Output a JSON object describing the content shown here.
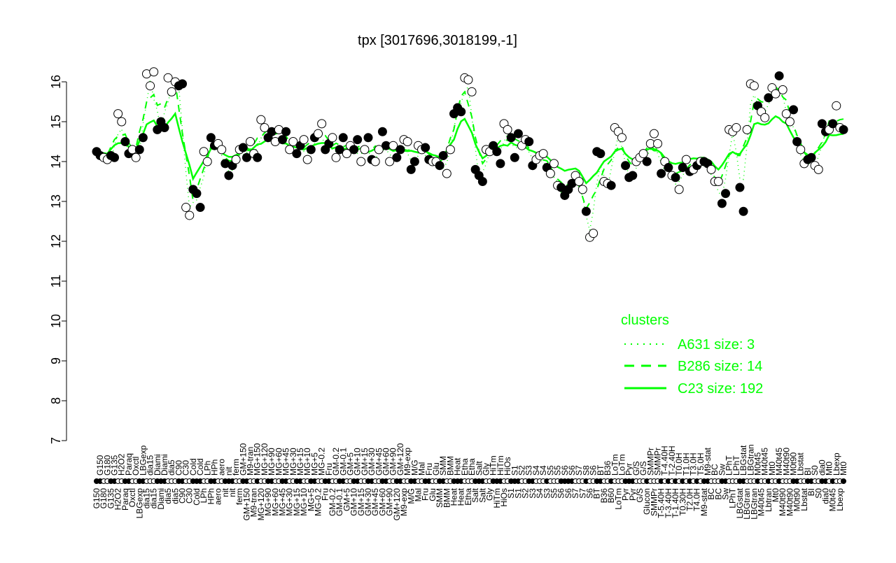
{
  "chart_data": {
    "type": "scatter",
    "title": "tpx [3017696,3018199,-1]",
    "xlabel": "",
    "ylabel": "",
    "ylim": [
      7,
      16
    ],
    "yticks": [
      7,
      8,
      9,
      10,
      11,
      12,
      13,
      14,
      15,
      16
    ],
    "grid": false,
    "colors": {
      "points_fill_a": "#000000",
      "points_fill_b": "#ffffff",
      "cluster_line": "#00ff00"
    },
    "legend": {
      "title": "clusters",
      "placement": "right",
      "entries": [
        {
          "name": "A631 size: 3",
          "style": "dotted"
        },
        {
          "name": "B286 size: 14",
          "style": "dashed"
        },
        {
          "name": "C23 size: 192",
          "style": "solid"
        }
      ]
    },
    "points": [
      [
        "G150",
        14.25
      ],
      [
        "G150",
        14.15
      ],
      [
        "G180",
        14.1
      ],
      [
        "G180",
        14.05
      ],
      [
        "G135",
        14.15
      ],
      [
        "G135",
        14.1
      ],
      [
        "H2O2",
        15.2
      ],
      [
        "H2O2",
        15.0
      ],
      [
        "Paraq",
        14.5
      ],
      [
        "Paraq",
        14.2
      ],
      [
        "Oxctl",
        14.3
      ],
      [
        "Oxctl",
        14.1
      ],
      [
        "LBGexp",
        14.3
      ],
      [
        "LBGexp",
        14.6
      ],
      [
        "dia15",
        16.2
      ],
      [
        "dia15",
        15.9
      ],
      [
        "dia15",
        16.25
      ],
      [
        "Diami",
        14.8
      ],
      [
        "Diami",
        15.0
      ],
      [
        "Diami",
        14.85
      ],
      [
        "dia5",
        16.1
      ],
      [
        "dia5",
        15.75
      ],
      [
        "dia5",
        16.0
      ],
      [
        "C90",
        15.9
      ],
      [
        "C90",
        15.95
      ],
      [
        "C30",
        12.85
      ],
      [
        "C30",
        12.65
      ],
      [
        "Cold",
        13.3
      ],
      [
        "Cold",
        13.2
      ],
      [
        "Cold",
        12.85
      ],
      [
        "LPh",
        14.25
      ],
      [
        "LPh",
        14.0
      ],
      [
        "HPh",
        14.6
      ],
      [
        "HPh",
        14.4
      ],
      [
        "aero",
        14.45
      ],
      [
        "aero",
        14.3
      ],
      [
        "nit",
        13.95
      ],
      [
        "nit",
        13.65
      ],
      [
        "nit",
        13.9
      ],
      [
        "ferm",
        14.05
      ],
      [
        "ferm",
        14.3
      ],
      [
        "GM+150",
        14.35
      ],
      [
        "GM+150",
        14.1
      ],
      [
        "M9-tran",
        14.5
      ],
      [
        "M9-tran",
        14.2
      ],
      [
        "MG+150",
        14.1
      ],
      [
        "MG+120",
        15.05
      ],
      [
        "MG+120",
        14.85
      ],
      [
        "MG+90",
        14.6
      ],
      [
        "MG+90",
        14.75
      ],
      [
        "MG+60",
        14.5
      ],
      [
        "MG+60",
        14.8
      ],
      [
        "MG+45",
        14.55
      ],
      [
        "MG+45",
        14.75
      ],
      [
        "MG+30",
        14.3
      ],
      [
        "MG+30",
        14.5
      ],
      [
        "MG+15",
        14.2
      ],
      [
        "MG+15",
        14.4
      ],
      [
        "MG+10",
        14.55
      ],
      [
        "MG+10",
        14.05
      ],
      [
        "MG+5",
        14.3
      ],
      [
        "MG+5",
        14.6
      ],
      [
        "MG-0.2",
        14.7
      ],
      [
        "MG-0.2",
        14.95
      ],
      [
        "Fru",
        14.3
      ],
      [
        "Fru",
        14.45
      ],
      [
        "GM-0.2",
        14.6
      ],
      [
        "GM-0.2",
        14.1
      ],
      [
        "GM-0.1",
        14.3
      ],
      [
        "GM-0.1",
        14.6
      ],
      [
        "GM+5",
        14.2
      ],
      [
        "GM+5",
        14.4
      ],
      [
        "GM+10",
        14.3
      ],
      [
        "GM+10",
        14.55
      ],
      [
        "GM+15",
        14.0
      ],
      [
        "GM+15",
        14.3
      ],
      [
        "GM+30",
        14.6
      ],
      [
        "GM+30",
        14.05
      ],
      [
        "GM+45",
        14.0
      ],
      [
        "GM+45",
        14.3
      ],
      [
        "GM+60",
        14.75
      ],
      [
        "GM+60",
        14.4
      ],
      [
        "GM+90",
        14.0
      ],
      [
        "GM+90",
        14.4
      ],
      [
        "GM+120",
        14.1
      ],
      [
        "GM+120",
        14.3
      ],
      [
        "M9-exp",
        14.55
      ],
      [
        "M9-exp",
        14.5
      ],
      [
        "M/G",
        13.8
      ],
      [
        "M/G",
        14.0
      ],
      [
        "Mal",
        14.4
      ],
      [
        "Mal",
        14.3
      ],
      [
        "Fru",
        14.35
      ],
      [
        "Fru",
        14.05
      ],
      [
        "Glu",
        14.0
      ],
      [
        "Glu",
        14.0
      ],
      [
        "SMM",
        13.9
      ],
      [
        "SMM",
        14.15
      ],
      [
        "BMM",
        13.7
      ],
      [
        "BMM",
        14.3
      ],
      [
        "Heat",
        15.2
      ],
      [
        "Heat",
        15.35
      ],
      [
        "Heat",
        15.25
      ],
      [
        "Etha",
        16.1
      ],
      [
        "Etha",
        16.05
      ],
      [
        "Etha",
        15.75
      ],
      [
        "Salt",
        13.8
      ],
      [
        "Salt",
        13.65
      ],
      [
        "Salt",
        13.5
      ],
      [
        "Gly",
        14.3
      ],
      [
        "Gly",
        14.25
      ],
      [
        "HiTm",
        14.4
      ],
      [
        "HiTm",
        14.25
      ],
      [
        "HiTm",
        13.95
      ],
      [
        "HiOs",
        14.95
      ],
      [
        "HiOs",
        14.8
      ],
      [
        "S1",
        14.6
      ],
      [
        "S1",
        14.1
      ],
      [
        "S1",
        14.7
      ],
      [
        "S2",
        14.4
      ],
      [
        "S2",
        14.55
      ],
      [
        "S3",
        14.5
      ],
      [
        "S3",
        13.9
      ],
      [
        "S4",
        14.05
      ],
      [
        "S4",
        14.15
      ],
      [
        "S4",
        14.2
      ],
      [
        "S3",
        13.85
      ],
      [
        "S5",
        13.7
      ],
      [
        "S5",
        13.95
      ],
      [
        "S5",
        13.4
      ],
      [
        "S6",
        13.35
      ],
      [
        "S6",
        13.15
      ],
      [
        "S6",
        13.3
      ],
      [
        "S6",
        13.45
      ],
      [
        "S7",
        13.65
      ],
      [
        "S7",
        13.5
      ],
      [
        "S7",
        13.3
      ],
      [
        "S8",
        12.75
      ],
      [
        "S6",
        12.1
      ],
      [
        "S6",
        12.2
      ],
      [
        "BT",
        14.25
      ],
      [
        "BT",
        14.2
      ],
      [
        "B36",
        13.5
      ],
      [
        "B36",
        13.45
      ],
      [
        "B60",
        13.4
      ],
      [
        "LoTm",
        14.85
      ],
      [
        "LoTm",
        14.75
      ],
      [
        "LoTm",
        14.6
      ],
      [
        "Pyr",
        13.9
      ],
      [
        "Pyr",
        13.6
      ],
      [
        "Pyr",
        13.65
      ],
      [
        "G/S",
        14.0
      ],
      [
        "G/S",
        14.1
      ],
      [
        "G/S",
        14.2
      ],
      [
        "Glucon",
        14.0
      ],
      [
        "SMMPr",
        14.45
      ],
      [
        "SMMPr",
        14.7
      ],
      [
        "SMMPr",
        14.45
      ],
      [
        "T-5.40H",
        13.7
      ],
      [
        "T-4.40H",
        14.0
      ],
      [
        "T-3.40H",
        13.85
      ],
      [
        "T-2.40H",
        13.65
      ],
      [
        "T-1.40H",
        13.6
      ],
      [
        "T0.0H",
        13.3
      ],
      [
        "T0.30H",
        13.85
      ],
      [
        "T1.0H",
        14.05
      ],
      [
        "T2.0H",
        13.75
      ],
      [
        "T3.0H",
        13.8
      ],
      [
        "T4.0H",
        13.9
      ],
      [
        "T5.0H",
        14.0
      ],
      [
        "M9-stat",
        14.0
      ],
      [
        "M9-stat",
        13.95
      ],
      [
        "BC",
        13.8
      ],
      [
        "BC",
        13.5
      ],
      [
        "BC",
        13.5
      ],
      [
        "Sw",
        12.95
      ],
      [
        "Sw",
        13.2
      ],
      [
        "LPhT",
        14.8
      ],
      [
        "LPhT",
        14.75
      ],
      [
        "LPhT",
        14.85
      ],
      [
        "LBGstat",
        13.35
      ],
      [
        "LBGstat",
        12.75
      ],
      [
        "LBGtran",
        14.8
      ],
      [
        "LBGtran",
        15.95
      ],
      [
        "LBGtran",
        15.9
      ],
      [
        "M0t45",
        15.4
      ],
      [
        "M40t45",
        15.25
      ],
      [
        "M40t45",
        15.1
      ],
      [
        "Lbtran",
        15.6
      ],
      [
        "Mt0",
        15.85
      ],
      [
        "Mt0",
        15.7
      ],
      [
        "M40t45",
        16.15
      ],
      [
        "M40t90",
        15.8
      ],
      [
        "M40t90",
        15.2
      ],
      [
        "M40t90",
        15.0
      ],
      [
        "M0t90",
        15.3
      ],
      [
        "M0t90",
        14.5
      ],
      [
        "Lbstat",
        14.3
      ],
      [
        "Lbstat",
        13.95
      ],
      [
        "BI",
        14.05
      ],
      [
        "BI",
        14.1
      ],
      [
        "S0",
        13.9
      ],
      [
        "S0",
        13.8
      ],
      [
        "dia0",
        14.95
      ],
      [
        "dia0",
        14.75
      ],
      [
        "Mt0",
        14.8
      ],
      [
        "M0t45",
        14.95
      ],
      [
        "Lbexp",
        15.4
      ],
      [
        "Lbexp",
        14.85
      ],
      [
        "Mt0",
        14.8
      ]
    ]
  }
}
